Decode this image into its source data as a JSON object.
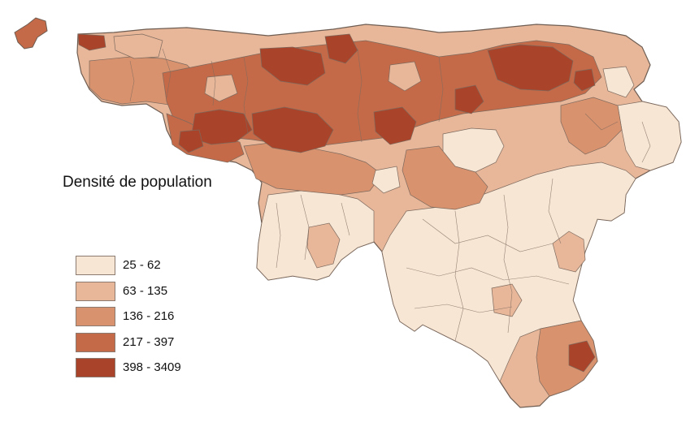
{
  "legend": {
    "title": "Densité de population",
    "classes": [
      {
        "label": "25 - 62",
        "color": "#f8e6d4"
      },
      {
        "label": "63 - 135",
        "color": "#e8b79a"
      },
      {
        "label": "136 - 216",
        "color": "#d9926e"
      },
      {
        "label": "217 - 397",
        "color": "#c46a48"
      },
      {
        "label": "398 - 3409",
        "color": "#a9442a"
      }
    ]
  }
}
